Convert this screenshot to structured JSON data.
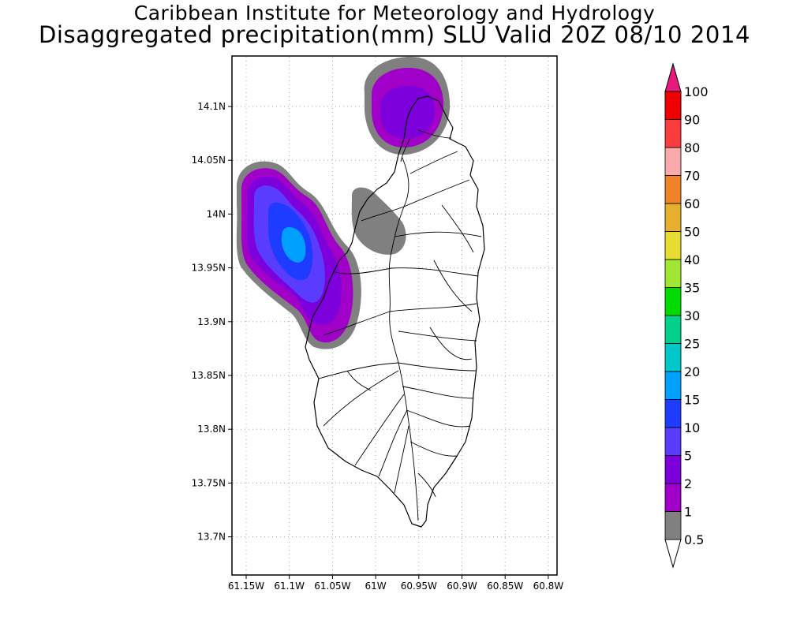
{
  "title": "Caribbean Institute for Meteorology and Hydrology",
  "subtitle": "Disaggregated precipitation(mm) SLU Valid 20Z 08/10 2014",
  "map": {
    "x_ticks": [
      "61.15W",
      "61.1W",
      "61.05W",
      "61W",
      "60.95W",
      "60.9W",
      "60.85W",
      "60.8W"
    ],
    "y_ticks": [
      "14.1N",
      "14.05N",
      "14N",
      "13.95N",
      "13.9N",
      "13.85N",
      "13.8N",
      "13.75N",
      "13.7N"
    ],
    "grid": "dotted",
    "region": "Saint Lucia"
  },
  "colorbar": {
    "labels": [
      "0.5",
      "1",
      "2",
      "5",
      "10",
      "15",
      "20",
      "25",
      "30",
      "35",
      "40",
      "50",
      "60",
      "70",
      "80",
      "90",
      "100"
    ],
    "colors": [
      "#808080",
      "#a000c8",
      "#7d00dc",
      "#5a3cff",
      "#1e3cff",
      "#00a0ff",
      "#00c8c8",
      "#00d28c",
      "#00dc00",
      "#a0e632",
      "#e6dc32",
      "#e6af2d",
      "#f08228",
      "#faaaaa",
      "#fa3c3c",
      "#f00000",
      "#f0325a"
    ],
    "top_color": "#e6197f"
  },
  "precip_areas": [
    {
      "name": "northern-tip",
      "max_class": "5"
    },
    {
      "name": "western-coast-offshore",
      "max_class": "20"
    },
    {
      "name": "central-west-inland",
      "max_class": "1"
    }
  ],
  "colors": {
    "background": "#ffffff",
    "land": "#ffffff",
    "outline": "#000000"
  }
}
